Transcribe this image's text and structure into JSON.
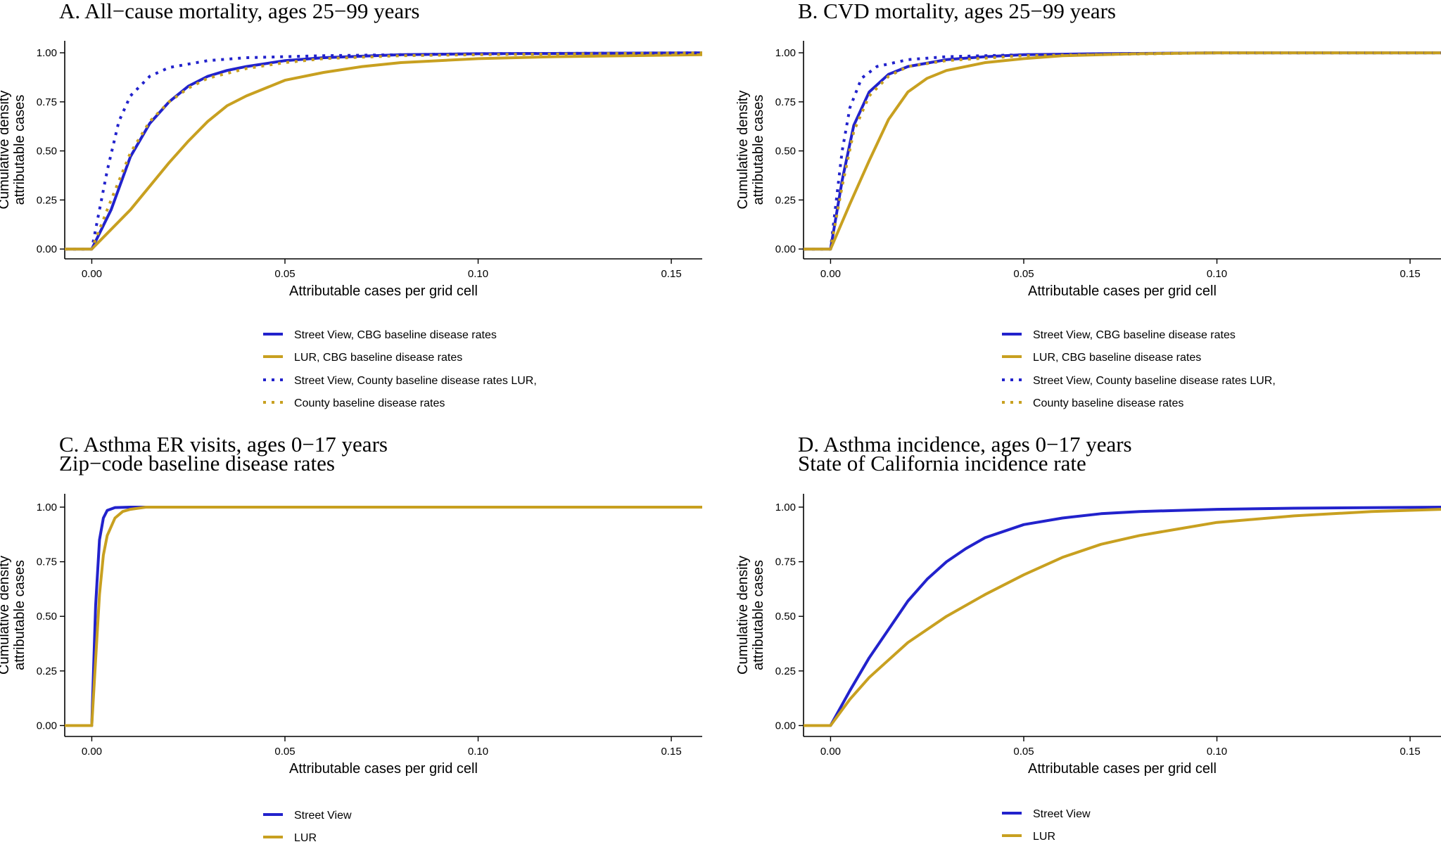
{
  "colors": {
    "street_view": "#2222cc",
    "lur": "#c8a020"
  },
  "chart_data": [
    {
      "type": "line",
      "title": [
        "A. All−cause mortality, ages 25−99 years"
      ],
      "xlabel": "Attributable cases per grid cell",
      "ylabel": [
        "Cumulative density",
        "attributable cases"
      ],
      "xlim": [
        -0.007,
        0.158
      ],
      "ylim": [
        0,
        1
      ],
      "xticks": [
        "0.00",
        "0.05",
        "0.10",
        "0.15"
      ],
      "yticks": [
        "0.00",
        "0.25",
        "0.50",
        "0.75",
        "1.00"
      ],
      "grid": false,
      "legend_position": "bottom",
      "legend": [
        {
          "label": "Street View, CBG baseline disease rates",
          "color": "#2222cc",
          "style": "solid"
        },
        {
          "label": "LUR, CBG baseline disease rates",
          "color": "#c8a020",
          "style": "solid"
        },
        {
          "label": "Street View, County baseline disease rates LUR,",
          "color": "#2222cc",
          "style": "dotted"
        },
        {
          "label": "County baseline disease rates",
          "color": "#c8a020",
          "style": "dotted"
        }
      ],
      "series": [
        {
          "color": "#2222cc",
          "style": "solid",
          "x": [
            -0.007,
            0.0,
            0.005,
            0.01,
            0.015,
            0.02,
            0.025,
            0.03,
            0.035,
            0.04,
            0.05,
            0.06,
            0.08,
            0.1,
            0.158
          ],
          "y": [
            0,
            0,
            0.2,
            0.47,
            0.64,
            0.75,
            0.83,
            0.88,
            0.91,
            0.93,
            0.96,
            0.975,
            0.99,
            0.995,
            1.0
          ]
        },
        {
          "color": "#c8a020",
          "style": "solid",
          "x": [
            -0.007,
            0.0,
            0.005,
            0.01,
            0.015,
            0.02,
            0.025,
            0.03,
            0.035,
            0.04,
            0.05,
            0.06,
            0.07,
            0.08,
            0.1,
            0.12,
            0.158
          ],
          "y": [
            0,
            0,
            0.1,
            0.2,
            0.32,
            0.44,
            0.55,
            0.65,
            0.73,
            0.78,
            0.86,
            0.9,
            0.93,
            0.95,
            0.97,
            0.98,
            0.99
          ]
        },
        {
          "color": "#2222cc",
          "style": "dotted",
          "x": [
            -0.007,
            0.0,
            0.004,
            0.007,
            0.01,
            0.015,
            0.02,
            0.03,
            0.04,
            0.06,
            0.08,
            0.1,
            0.158
          ],
          "y": [
            0,
            0,
            0.4,
            0.65,
            0.78,
            0.88,
            0.925,
            0.96,
            0.975,
            0.985,
            0.99,
            0.995,
            1.0
          ]
        },
        {
          "color": "#c8a020",
          "style": "dotted",
          "x": [
            -0.007,
            0.0,
            0.005,
            0.01,
            0.015,
            0.02,
            0.025,
            0.03,
            0.04,
            0.05,
            0.06,
            0.08,
            0.1,
            0.158
          ],
          "y": [
            0,
            0,
            0.25,
            0.49,
            0.65,
            0.75,
            0.82,
            0.87,
            0.92,
            0.95,
            0.97,
            0.985,
            0.99,
            1.0
          ]
        }
      ]
    },
    {
      "type": "line",
      "title": [
        "B. CVD mortality, ages 25−99 years"
      ],
      "xlabel": "Attributable cases per grid cell",
      "ylabel": [
        "Cumulative density",
        "attributable cases"
      ],
      "xlim": [
        -0.007,
        0.158
      ],
      "ylim": [
        0,
        1
      ],
      "xticks": [
        "0.00",
        "0.05",
        "0.10",
        "0.15"
      ],
      "yticks": [
        "0.00",
        "0.25",
        "0.50",
        "0.75",
        "1.00"
      ],
      "grid": false,
      "legend_position": "bottom",
      "legend": [
        {
          "label": "Street View, CBG baseline disease rates",
          "color": "#2222cc",
          "style": "solid"
        },
        {
          "label": "LUR, CBG baseline disease rates",
          "color": "#c8a020",
          "style": "solid"
        },
        {
          "label": "Street View, County baseline disease rates LUR,",
          "color": "#2222cc",
          "style": "dotted"
        },
        {
          "label": "County baseline disease rates",
          "color": "#c8a020",
          "style": "dotted"
        }
      ],
      "series": [
        {
          "color": "#2222cc",
          "style": "solid",
          "x": [
            -0.007,
            0.0,
            0.003,
            0.006,
            0.01,
            0.015,
            0.02,
            0.03,
            0.04,
            0.05,
            0.07,
            0.1,
            0.158
          ],
          "y": [
            0,
            0,
            0.35,
            0.63,
            0.8,
            0.89,
            0.93,
            0.965,
            0.98,
            0.99,
            0.995,
            1.0,
            1.0
          ]
        },
        {
          "color": "#c8a020",
          "style": "solid",
          "x": [
            -0.007,
            0.0,
            0.005,
            0.01,
            0.015,
            0.02,
            0.025,
            0.03,
            0.04,
            0.05,
            0.06,
            0.08,
            0.1,
            0.158
          ],
          "y": [
            0,
            0,
            0.23,
            0.45,
            0.66,
            0.8,
            0.87,
            0.91,
            0.95,
            0.97,
            0.985,
            0.995,
            1.0,
            1.0
          ]
        },
        {
          "color": "#2222cc",
          "style": "dotted",
          "x": [
            -0.007,
            0.0,
            0.003,
            0.005,
            0.008,
            0.012,
            0.02,
            0.03,
            0.05,
            0.1,
            0.158
          ],
          "y": [
            0,
            0,
            0.5,
            0.72,
            0.87,
            0.93,
            0.965,
            0.98,
            0.99,
            1.0,
            1.0
          ]
        },
        {
          "color": "#c8a020",
          "style": "dotted",
          "x": [
            -0.007,
            0.0,
            0.003,
            0.006,
            0.01,
            0.015,
            0.02,
            0.03,
            0.05,
            0.1,
            0.158
          ],
          "y": [
            0,
            0,
            0.32,
            0.6,
            0.78,
            0.88,
            0.93,
            0.96,
            0.985,
            1.0,
            1.0
          ]
        }
      ]
    },
    {
      "type": "line",
      "title": [
        "C. Asthma ER visits, ages 0−17 years",
        "Zip−code baseline disease rates"
      ],
      "xlabel": "Attributable cases per grid cell",
      "ylabel": [
        "Cumulative density",
        "attributable cases"
      ],
      "xlim": [
        -0.007,
        0.158
      ],
      "ylim": [
        0,
        1
      ],
      "xticks": [
        "0.00",
        "0.05",
        "0.10",
        "0.15"
      ],
      "yticks": [
        "0.00",
        "0.25",
        "0.50",
        "0.75",
        "1.00"
      ],
      "grid": false,
      "legend_position": "bottom",
      "legend": [
        {
          "label": "Street View",
          "color": "#2222cc",
          "style": "solid"
        },
        {
          "label": "LUR",
          "color": "#c8a020",
          "style": "solid"
        }
      ],
      "series": [
        {
          "color": "#2222cc",
          "style": "solid",
          "x": [
            -0.007,
            0.0,
            0.001,
            0.002,
            0.003,
            0.004,
            0.006,
            0.01,
            0.158
          ],
          "y": [
            0,
            0,
            0.55,
            0.85,
            0.95,
            0.985,
            0.998,
            1.0,
            1.0
          ]
        },
        {
          "color": "#c8a020",
          "style": "solid",
          "x": [
            -0.007,
            0.0,
            0.001,
            0.002,
            0.003,
            0.004,
            0.006,
            0.008,
            0.01,
            0.014,
            0.158
          ],
          "y": [
            0,
            0,
            0.3,
            0.6,
            0.78,
            0.87,
            0.95,
            0.98,
            0.99,
            1.0,
            1.0
          ]
        }
      ]
    },
    {
      "type": "line",
      "title": [
        "D. Asthma incidence, ages 0−17 years",
        "State of California incidence rate"
      ],
      "xlabel": "Attributable cases per grid cell",
      "ylabel": [
        "Cumulative density",
        "attributable cases"
      ],
      "xlim": [
        -0.007,
        0.158
      ],
      "ylim": [
        0,
        1
      ],
      "xticks": [
        "0.00",
        "0.05",
        "0.10",
        "0.15"
      ],
      "yticks": [
        "0.00",
        "0.25",
        "0.50",
        "0.75",
        "1.00"
      ],
      "grid": false,
      "legend_position": "bottom",
      "legend": [
        {
          "label": "Street View",
          "color": "#2222cc",
          "style": "solid"
        },
        {
          "label": "LUR",
          "color": "#c8a020",
          "style": "solid"
        }
      ],
      "series": [
        {
          "color": "#2222cc",
          "style": "solid",
          "x": [
            -0.007,
            0.0,
            0.005,
            0.01,
            0.015,
            0.02,
            0.025,
            0.03,
            0.035,
            0.04,
            0.05,
            0.06,
            0.07,
            0.08,
            0.1,
            0.12,
            0.158
          ],
          "y": [
            0,
            0,
            0.16,
            0.31,
            0.44,
            0.57,
            0.67,
            0.75,
            0.81,
            0.86,
            0.92,
            0.95,
            0.97,
            0.98,
            0.99,
            0.995,
            1.0
          ]
        },
        {
          "color": "#c8a020",
          "style": "solid",
          "x": [
            -0.007,
            0.0,
            0.005,
            0.01,
            0.015,
            0.02,
            0.03,
            0.04,
            0.05,
            0.06,
            0.07,
            0.08,
            0.09,
            0.1,
            0.12,
            0.14,
            0.158
          ],
          "y": [
            0,
            0,
            0.12,
            0.22,
            0.3,
            0.38,
            0.5,
            0.6,
            0.69,
            0.77,
            0.83,
            0.87,
            0.9,
            0.93,
            0.96,
            0.98,
            0.99
          ]
        }
      ]
    }
  ]
}
